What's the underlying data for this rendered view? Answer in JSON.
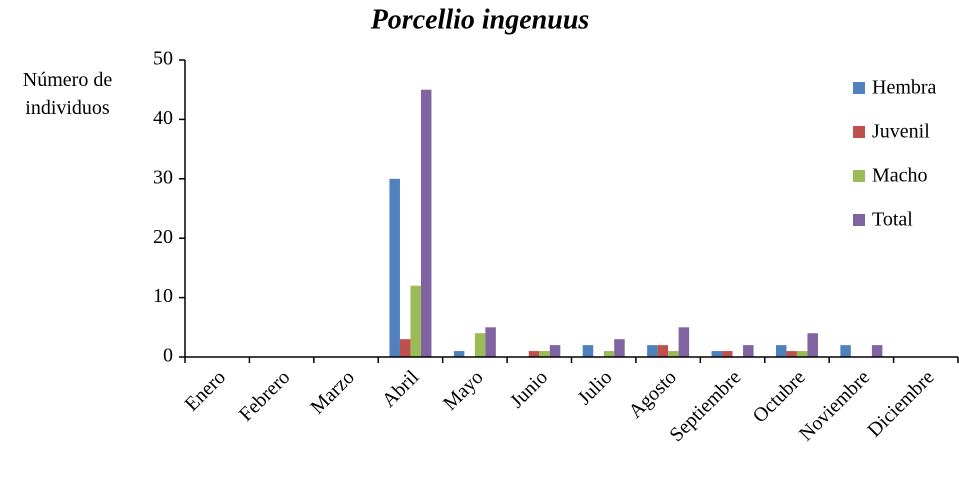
{
  "chart_data": {
    "type": "bar",
    "title": "Porcellio ingenuus",
    "y_label": "Número de individuos",
    "categories": [
      "Enero",
      "Febrero",
      "Marzo",
      "Abril",
      "Mayo",
      "Junio",
      "Julio",
      "Agosto",
      "Septiembre",
      "Octubre",
      "Noviembre",
      "Diciembre"
    ],
    "series": [
      {
        "name": "Hembra",
        "color": "#4f81bd",
        "values": [
          0,
          0,
          0,
          30,
          1,
          0,
          2,
          2,
          1,
          2,
          2,
          0
        ]
      },
      {
        "name": "Juvenil",
        "color": "#c0504d",
        "values": [
          0,
          0,
          0,
          3,
          0,
          1,
          0,
          2,
          1,
          1,
          0,
          0
        ]
      },
      {
        "name": "Macho",
        "color": "#9bbb59",
        "values": [
          0,
          0,
          0,
          12,
          4,
          1,
          1,
          1,
          0,
          1,
          0,
          0
        ]
      },
      {
        "name": "Total",
        "color": "#8064a2",
        "values": [
          0,
          0,
          0,
          45,
          5,
          2,
          3,
          5,
          2,
          4,
          2,
          0
        ]
      }
    ],
    "ylim": [
      0,
      50
    ],
    "yticks": [
      0,
      10,
      20,
      30,
      40,
      50
    ],
    "legend": "upper right"
  }
}
